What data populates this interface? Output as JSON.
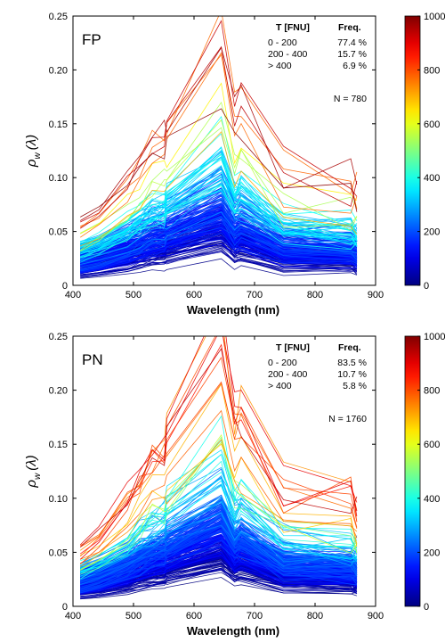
{
  "chart_data": [
    {
      "type": "line",
      "panel_label": "FP",
      "xlabel": "Wavelength (nm)",
      "ylabel_symbol": "ρ",
      "ylabel_subscript": "w",
      "ylabel_arg": "(λ)",
      "xlim": [
        400,
        900
      ],
      "ylim": [
        0,
        0.25
      ],
      "x_ticks": [
        "400",
        "500",
        "600",
        "700",
        "800",
        "900"
      ],
      "y_ticks": [
        "0",
        "0.05",
        "0.10",
        "0.15",
        "0.20",
        "0.25"
      ],
      "wavelengths": [
        412,
        443,
        490,
        510,
        531,
        551,
        555,
        645,
        667,
        678,
        748,
        859,
        869
      ],
      "table": {
        "headers": [
          "T [FNU]",
          "Freq."
        ],
        "rows": [
          [
            "0 - 200",
            "77.4 %"
          ],
          [
            "200 - 400",
            "15.7 %"
          ],
          [
            "> 400",
            "6.9 %"
          ]
        ]
      },
      "n_label": "N = 780",
      "colorbar": {
        "label": "T [FNU]",
        "min": 0,
        "max": 1000,
        "ticks": [
          "0",
          "200",
          "400",
          "600",
          "800",
          "1000"
        ]
      },
      "n_spectra": 780,
      "series_summary": "780 reflectance spectra colored by turbidity; max near 0.20 at 645 nm, minimum-turbidity spectra near 0.01-0.03",
      "ymax_at_645": 0.2
    },
    {
      "type": "line",
      "panel_label": "PN",
      "xlabel": "Wavelength (nm)",
      "ylabel_symbol": "ρ",
      "ylabel_subscript": "w",
      "ylabel_arg": "(λ)",
      "xlim": [
        400,
        900
      ],
      "ylim": [
        0,
        0.25
      ],
      "x_ticks": [
        "400",
        "500",
        "600",
        "700",
        "800",
        "900"
      ],
      "y_ticks": [
        "0",
        "0.05",
        "0.10",
        "0.15",
        "0.20",
        "0.25"
      ],
      "wavelengths": [
        412,
        443,
        490,
        510,
        531,
        551,
        555,
        645,
        667,
        678,
        748,
        859,
        869
      ],
      "table": {
        "headers": [
          "T [FNU]",
          "Freq."
        ],
        "rows": [
          [
            "0 - 200",
            "83.5 %"
          ],
          [
            "200 - 400",
            "10.7 %"
          ],
          [
            "> 400",
            "5.8 %"
          ]
        ]
      },
      "n_label": "N = 1760",
      "colorbar": {
        "label": "T [FNU ]",
        "min": 0,
        "max": 1000,
        "ticks": [
          "0",
          "200",
          "400",
          "600",
          "800",
          "1000"
        ]
      },
      "n_spectra": 1760,
      "series_summary": "1760 reflectance spectra colored by turbidity; max near 0.24 at 645 nm",
      "ymax_at_645": 0.24
    }
  ]
}
